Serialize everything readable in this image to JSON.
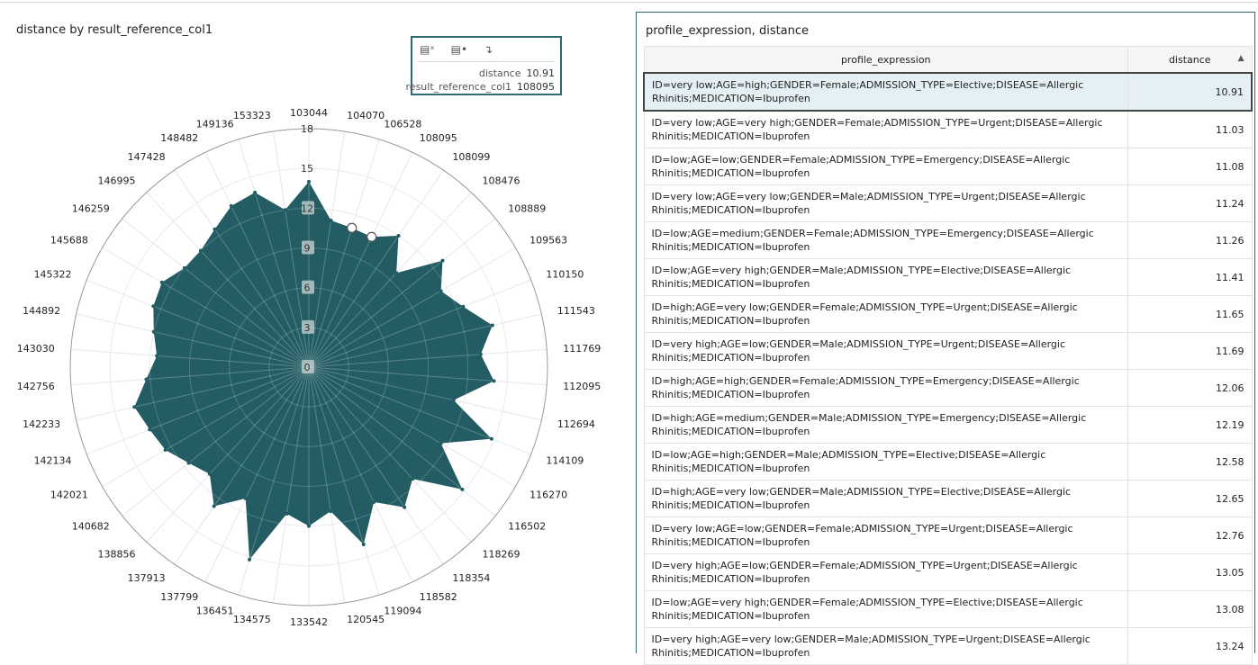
{
  "chart_panel": {
    "title": "distance by result_reference_col1"
  },
  "chart_data": {
    "type": "radar",
    "title": "distance by result_reference_col1",
    "categories": [
      "103044",
      "104070",
      "106528",
      "108095",
      "108099",
      "108476",
      "108889",
      "109563",
      "110150",
      "111543",
      "111769",
      "112095",
      "112694",
      "114109",
      "116270",
      "116502",
      "118269",
      "118354",
      "118582",
      "119094",
      "120545",
      "133542",
      "134575",
      "136451",
      "137799",
      "137913",
      "138856",
      "140682",
      "142021",
      "142134",
      "142233",
      "142756",
      "143030",
      "144892",
      "145322",
      "145688",
      "146259",
      "146995",
      "147428",
      "148482",
      "149136",
      "153323"
    ],
    "values": [
      14.0,
      11.2,
      11.0,
      10.91,
      12.0,
      9.7,
      12.9,
      11.5,
      12.5,
      14.2,
      13.0,
      14.0,
      11.2,
      14.8,
      11.5,
      14.8,
      11.5,
      12.8,
      11.3,
      14.0,
      11.0,
      12.0,
      11.2,
      15.2,
      11.0,
      12.7,
      11.0,
      11.6,
      12.5,
      12.9,
      13.5,
      12.3,
      11.5,
      12.0,
      12.6,
      12.8,
      12.0,
      12.0,
      12.6,
      13.5,
      13.8,
      12.0
    ],
    "radial_ticks": [
      "0",
      "3",
      "6",
      "9",
      "12",
      "15",
      "18"
    ],
    "rlim": [
      0,
      18
    ],
    "grid": true,
    "fill_color": "#235c63",
    "highlighted": [
      "106528",
      "108095"
    ]
  },
  "tooltip": {
    "icons": [
      "drill-icon",
      "keep-only-icon",
      "drill-down-icon"
    ],
    "rows": [
      {
        "label": "distance",
        "value": "10.91"
      },
      {
        "label": "result_reference_col1",
        "value": "108095"
      }
    ]
  },
  "table_panel": {
    "title": "profile_expression, distance",
    "columns": [
      "profile_expression",
      "distance"
    ],
    "sort": "ascending",
    "rows": [
      [
        "ID=very low;AGE=high;GENDER=Female;ADMISSION_TYPE=Elective;DISEASE=Allergic Rhinitis;MEDICATION=Ibuprofen",
        "10.91"
      ],
      [
        "ID=very low;AGE=very high;GENDER=Female;ADMISSION_TYPE=Urgent;DISEASE=Allergic Rhinitis;MEDICATION=Ibuprofen",
        "11.03"
      ],
      [
        "ID=low;AGE=low;GENDER=Female;ADMISSION_TYPE=Emergency;DISEASE=Allergic Rhinitis;MEDICATION=Ibuprofen",
        "11.08"
      ],
      [
        "ID=very low;AGE=very low;GENDER=Male;ADMISSION_TYPE=Urgent;DISEASE=Allergic Rhinitis;MEDICATION=Ibuprofen",
        "11.24"
      ],
      [
        "ID=low;AGE=medium;GENDER=Female;ADMISSION_TYPE=Emergency;DISEASE=Allergic Rhinitis;MEDICATION=Ibuprofen",
        "11.26"
      ],
      [
        "ID=low;AGE=very high;GENDER=Male;ADMISSION_TYPE=Elective;DISEASE=Allergic Rhinitis;MEDICATION=Ibuprofen",
        "11.41"
      ],
      [
        "ID=high;AGE=very low;GENDER=Female;ADMISSION_TYPE=Urgent;DISEASE=Allergic Rhinitis;MEDICATION=Ibuprofen",
        "11.65"
      ],
      [
        "ID=very high;AGE=low;GENDER=Male;ADMISSION_TYPE=Urgent;DISEASE=Allergic Rhinitis;MEDICATION=Ibuprofen",
        "11.69"
      ],
      [
        "ID=high;AGE=high;GENDER=Female;ADMISSION_TYPE=Emergency;DISEASE=Allergic Rhinitis;MEDICATION=Ibuprofen",
        "12.06"
      ],
      [
        "ID=high;AGE=medium;GENDER=Male;ADMISSION_TYPE=Emergency;DISEASE=Allergic Rhinitis;MEDICATION=Ibuprofen",
        "12.19"
      ],
      [
        "ID=low;AGE=high;GENDER=Male;ADMISSION_TYPE=Elective;DISEASE=Allergic Rhinitis;MEDICATION=Ibuprofen",
        "12.58"
      ],
      [
        "ID=high;AGE=very low;GENDER=Male;ADMISSION_TYPE=Elective;DISEASE=Allergic Rhinitis;MEDICATION=Ibuprofen",
        "12.65"
      ],
      [
        "ID=very low;AGE=low;GENDER=Female;ADMISSION_TYPE=Urgent;DISEASE=Allergic Rhinitis;MEDICATION=Ibuprofen",
        "12.76"
      ],
      [
        "ID=very high;AGE=low;GENDER=Female;ADMISSION_TYPE=Urgent;DISEASE=Allergic Rhinitis;MEDICATION=Ibuprofen",
        "13.05"
      ],
      [
        "ID=low;AGE=very high;GENDER=Female;ADMISSION_TYPE=Elective;DISEASE=Allergic Rhinitis;MEDICATION=Ibuprofen",
        "13.08"
      ],
      [
        "ID=very high;AGE=very low;GENDER=Male;ADMISSION_TYPE=Urgent;DISEASE=Allergic Rhinitis;MEDICATION=Ibuprofen",
        "13.24"
      ]
    ]
  }
}
